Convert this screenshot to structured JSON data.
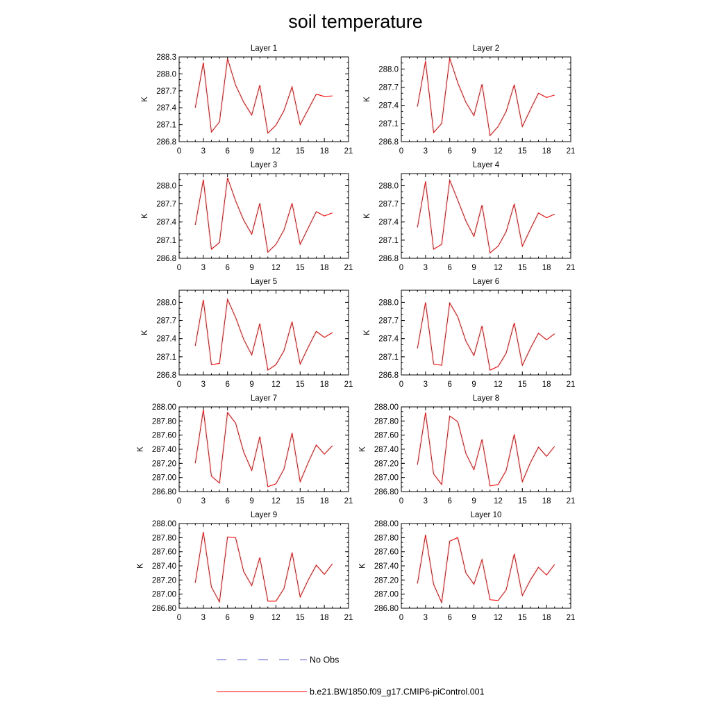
{
  "title": "soil temperature",
  "legend": [
    {
      "label": "No Obs",
      "color": "#5a5acd",
      "dash": true
    },
    {
      "label": "b.e21.BW1850.f09_g17.CMIP6-piControl.001",
      "color": "#ff0000",
      "dash": false
    }
  ],
  "chart_data": [
    {
      "type": "line",
      "title": "Layer 1",
      "ylabel": "K",
      "xlim": [
        0,
        21
      ],
      "ylim": [
        286.8,
        288.3
      ],
      "xticks": [
        "0",
        "3",
        "6",
        "9",
        "12",
        "15",
        "18",
        "21"
      ],
      "yticks": [
        "286.8",
        "287.1",
        "287.4",
        "287.7",
        "288.0",
        "288.3"
      ],
      "series": [
        {
          "color": "#ff0000",
          "x": [
            2,
            3,
            4,
            5,
            6,
            7,
            8,
            9,
            10,
            11,
            12,
            13,
            14,
            15,
            16,
            17,
            18,
            19
          ],
          "values": [
            287.4,
            288.2,
            286.97,
            287.15,
            288.27,
            287.8,
            287.5,
            287.27,
            287.8,
            286.95,
            287.09,
            287.35,
            287.77,
            287.1,
            287.37,
            287.64,
            287.6,
            287.61
          ]
        }
      ]
    },
    {
      "type": "line",
      "title": "Layer 2",
      "ylabel": "K",
      "xlim": [
        0,
        21
      ],
      "ylim": [
        286.8,
        288.2
      ],
      "xticks": [
        "0",
        "3",
        "6",
        "9",
        "12",
        "15",
        "18",
        "21"
      ],
      "yticks": [
        "286.8",
        "287.1",
        "287.4",
        "287.7",
        "288.0"
      ],
      "series": [
        {
          "color": "#ff0000",
          "x": [
            2,
            3,
            4,
            5,
            6,
            7,
            8,
            9,
            10,
            11,
            12,
            13,
            14,
            15,
            16,
            17,
            18,
            19
          ],
          "values": [
            287.38,
            288.13,
            286.95,
            287.1,
            288.18,
            287.77,
            287.45,
            287.23,
            287.75,
            286.9,
            287.05,
            287.3,
            287.74,
            287.05,
            287.33,
            287.6,
            287.53,
            287.57
          ]
        }
      ]
    },
    {
      "type": "line",
      "title": "Layer 3",
      "ylabel": "K",
      "xlim": [
        0,
        21
      ],
      "ylim": [
        286.8,
        288.2
      ],
      "xticks": [
        "0",
        "3",
        "6",
        "9",
        "12",
        "15",
        "18",
        "21"
      ],
      "yticks": [
        "286.8",
        "287.1",
        "287.4",
        "287.7",
        "288.0"
      ],
      "series": [
        {
          "color": "#ff0000",
          "x": [
            2,
            3,
            4,
            5,
            6,
            7,
            8,
            9,
            10,
            11,
            12,
            13,
            14,
            15,
            16,
            17,
            18,
            19
          ],
          "values": [
            287.35,
            288.1,
            286.95,
            287.06,
            288.13,
            287.75,
            287.43,
            287.2,
            287.71,
            286.9,
            287.03,
            287.27,
            287.71,
            287.03,
            287.3,
            287.57,
            287.5,
            287.55
          ]
        }
      ]
    },
    {
      "type": "line",
      "title": "Layer 4",
      "ylabel": "K",
      "xlim": [
        0,
        21
      ],
      "ylim": [
        286.8,
        288.2
      ],
      "xticks": [
        "0",
        "3",
        "6",
        "9",
        "12",
        "15",
        "18",
        "21"
      ],
      "yticks": [
        "286.8",
        "287.1",
        "287.4",
        "287.7",
        "288.0"
      ],
      "series": [
        {
          "color": "#ff0000",
          "x": [
            2,
            3,
            4,
            5,
            6,
            7,
            8,
            9,
            10,
            11,
            12,
            13,
            14,
            15,
            16,
            17,
            18,
            19
          ],
          "values": [
            287.31,
            288.07,
            286.95,
            287.03,
            288.09,
            287.76,
            287.42,
            287.16,
            287.68,
            286.89,
            287.0,
            287.24,
            287.7,
            287.0,
            287.28,
            287.55,
            287.47,
            287.53
          ]
        }
      ]
    },
    {
      "type": "line",
      "title": "Layer 5",
      "ylabel": "K",
      "xlim": [
        0,
        21
      ],
      "ylim": [
        286.8,
        288.2
      ],
      "xticks": [
        "0",
        "3",
        "6",
        "9",
        "12",
        "15",
        "18",
        "21"
      ],
      "yticks": [
        "286.8",
        "287.1",
        "287.4",
        "287.7",
        "288.0"
      ],
      "series": [
        {
          "color": "#ff0000",
          "x": [
            2,
            3,
            4,
            5,
            6,
            7,
            8,
            9,
            10,
            11,
            12,
            13,
            14,
            15,
            16,
            17,
            18,
            19
          ],
          "values": [
            287.28,
            288.04,
            286.97,
            286.99,
            288.05,
            287.75,
            287.39,
            287.13,
            287.65,
            286.88,
            286.97,
            287.2,
            287.68,
            286.98,
            287.26,
            287.52,
            287.42,
            287.5
          ]
        }
      ]
    },
    {
      "type": "line",
      "title": "Layer 6",
      "ylabel": "K",
      "xlim": [
        0,
        21
      ],
      "ylim": [
        286.8,
        288.2
      ],
      "xticks": [
        "0",
        "3",
        "6",
        "9",
        "12",
        "15",
        "18",
        "21"
      ],
      "yticks": [
        "286.8",
        "287.1",
        "287.4",
        "287.7",
        "288.0"
      ],
      "series": [
        {
          "color": "#ff0000",
          "x": [
            2,
            3,
            4,
            5,
            6,
            7,
            8,
            9,
            10,
            11,
            12,
            13,
            14,
            15,
            16,
            17,
            18,
            19
          ],
          "values": [
            287.24,
            288.0,
            286.98,
            286.96,
            287.99,
            287.76,
            287.36,
            287.12,
            287.61,
            286.88,
            286.94,
            287.16,
            287.66,
            286.96,
            287.24,
            287.49,
            287.38,
            287.48
          ]
        }
      ]
    },
    {
      "type": "line",
      "title": "Layer 7",
      "ylabel": "K",
      "xlim": [
        0,
        21
      ],
      "ylim": [
        286.8,
        288.0
      ],
      "xticks": [
        "0",
        "3",
        "6",
        "9",
        "12",
        "15",
        "18",
        "21"
      ],
      "yticks": [
        "286.80",
        "287.00",
        "287.20",
        "287.40",
        "287.60",
        "287.80",
        "288.00"
      ],
      "series": [
        {
          "color": "#ff0000",
          "x": [
            2,
            3,
            4,
            5,
            6,
            7,
            8,
            9,
            10,
            11,
            12,
            13,
            14,
            15,
            16,
            17,
            18,
            19
          ],
          "values": [
            287.2,
            287.96,
            287.02,
            286.92,
            287.92,
            287.77,
            287.36,
            287.1,
            287.58,
            286.87,
            286.91,
            287.12,
            287.63,
            286.94,
            287.21,
            287.46,
            287.33,
            287.45
          ]
        }
      ]
    },
    {
      "type": "line",
      "title": "Layer 8",
      "ylabel": "K",
      "xlim": [
        0,
        21
      ],
      "ylim": [
        286.8,
        288.0
      ],
      "xticks": [
        "0",
        "3",
        "6",
        "9",
        "12",
        "15",
        "18",
        "21"
      ],
      "yticks": [
        "286.80",
        "287.00",
        "287.20",
        "287.40",
        "287.60",
        "287.80",
        "288.00"
      ],
      "series": [
        {
          "color": "#ff0000",
          "x": [
            2,
            3,
            4,
            5,
            6,
            7,
            8,
            9,
            10,
            11,
            12,
            13,
            14,
            15,
            16,
            17,
            18,
            19
          ],
          "values": [
            287.18,
            287.92,
            287.05,
            286.9,
            287.87,
            287.79,
            287.34,
            287.11,
            287.54,
            286.88,
            286.9,
            287.1,
            287.61,
            286.94,
            287.21,
            287.43,
            287.3,
            287.44
          ]
        }
      ]
    },
    {
      "type": "line",
      "title": "Layer 9",
      "ylabel": "K",
      "xlim": [
        0,
        21
      ],
      "ylim": [
        286.8,
        288.0
      ],
      "xticks": [
        "0",
        "3",
        "6",
        "9",
        "12",
        "15",
        "18",
        "21"
      ],
      "yticks": [
        "286.80",
        "287.00",
        "287.20",
        "287.40",
        "287.60",
        "287.80",
        "288.00"
      ],
      "series": [
        {
          "color": "#ff0000",
          "x": [
            2,
            3,
            4,
            5,
            6,
            7,
            8,
            9,
            10,
            11,
            12,
            13,
            14,
            15,
            16,
            17,
            18,
            19
          ],
          "values": [
            287.16,
            287.88,
            287.1,
            286.89,
            287.81,
            287.8,
            287.32,
            287.12,
            287.52,
            286.9,
            286.9,
            287.08,
            287.59,
            286.96,
            287.2,
            287.41,
            287.28,
            287.43
          ]
        }
      ]
    },
    {
      "type": "line",
      "title": "Layer 10",
      "ylabel": "K",
      "xlim": [
        0,
        21
      ],
      "ylim": [
        286.8,
        288.0
      ],
      "xticks": [
        "0",
        "3",
        "6",
        "9",
        "12",
        "15",
        "18",
        "21"
      ],
      "yticks": [
        "286.80",
        "287.00",
        "287.20",
        "287.40",
        "287.60",
        "287.80",
        "288.00"
      ],
      "series": [
        {
          "color": "#ff0000",
          "x": [
            2,
            3,
            4,
            5,
            6,
            7,
            8,
            9,
            10,
            11,
            12,
            13,
            14,
            15,
            16,
            17,
            18,
            19
          ],
          "values": [
            287.15,
            287.84,
            287.14,
            286.88,
            287.75,
            287.8,
            287.3,
            287.14,
            287.49,
            286.92,
            286.91,
            287.06,
            287.57,
            286.98,
            287.2,
            287.38,
            287.27,
            287.42
          ]
        }
      ]
    }
  ]
}
